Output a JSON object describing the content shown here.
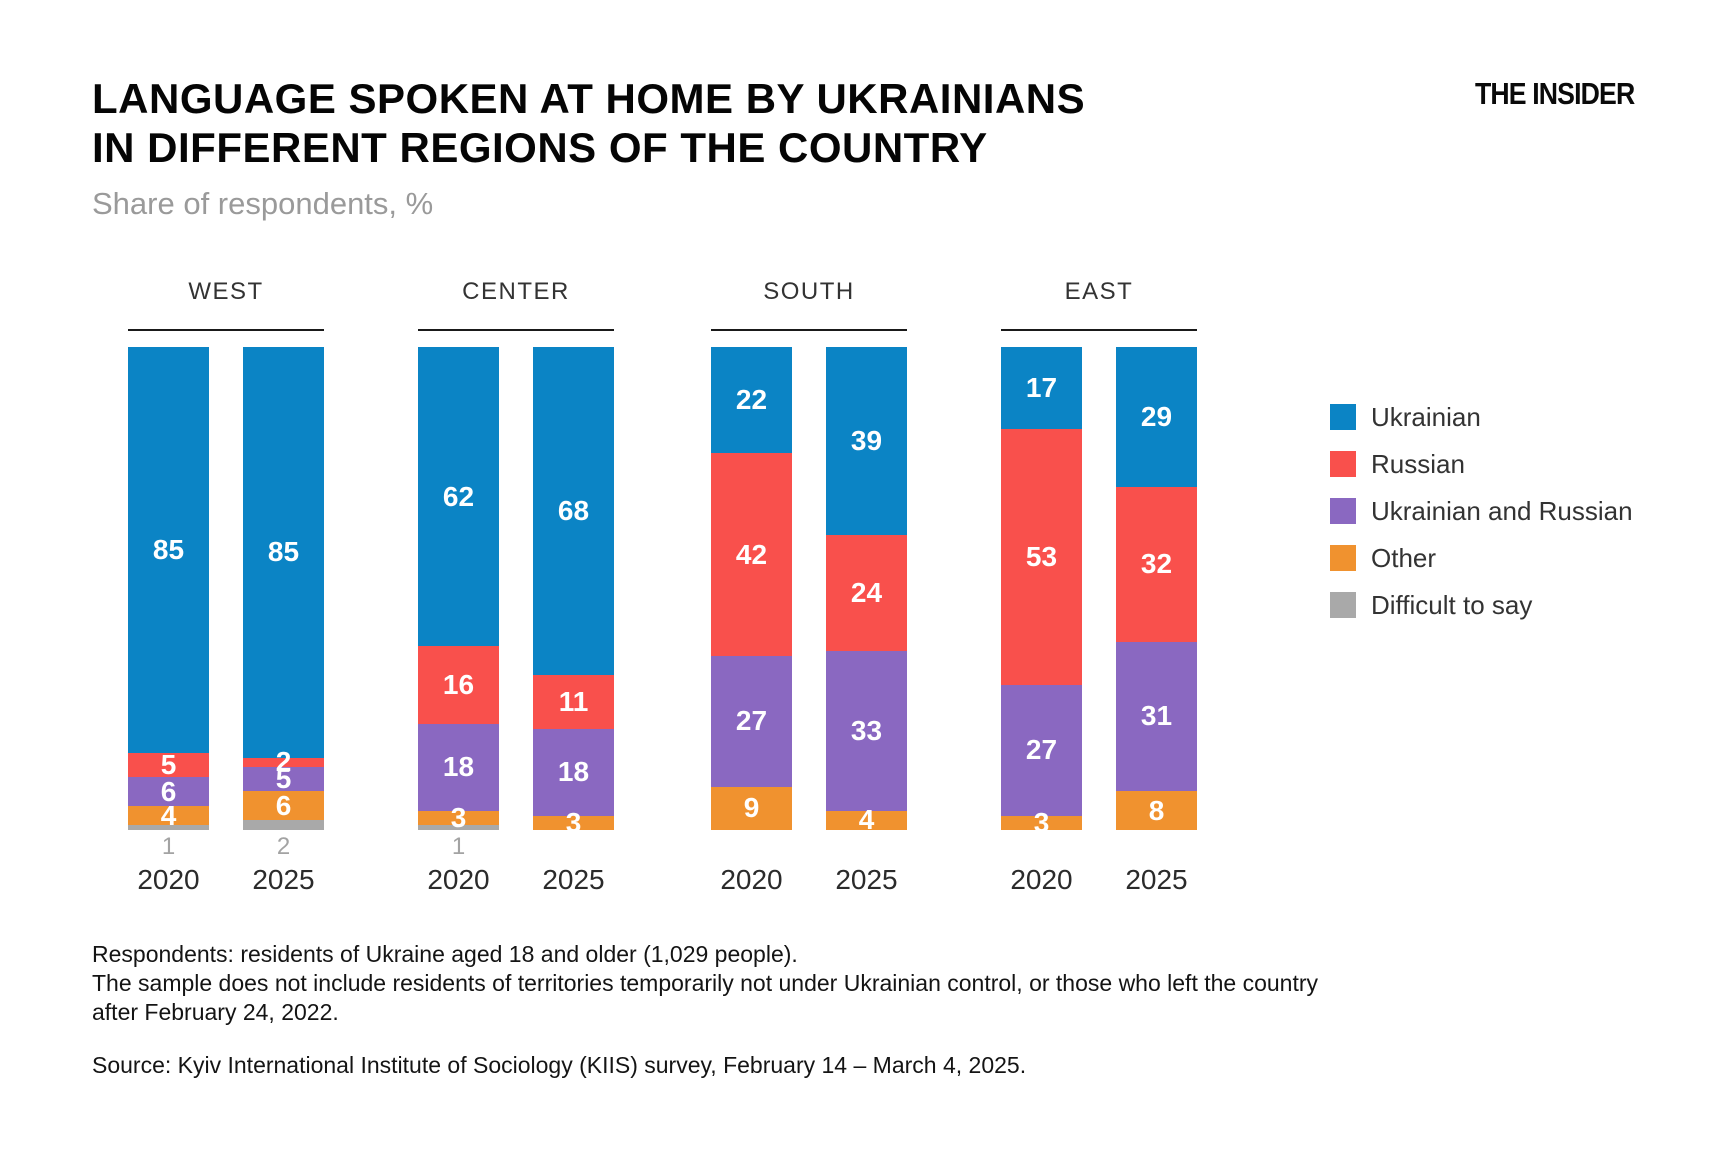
{
  "header": {
    "title_line1": "LANGUAGE SPOKEN AT HOME BY UKRAINIANS",
    "title_line2": "IN DIFFERENT REGIONS OF THE COUNTRY",
    "subtitle": "Share of respondents, %",
    "logo": "THE INSIDER"
  },
  "chart_data": {
    "type": "bar",
    "stacked": true,
    "unit": "%",
    "title": "Language spoken at home by Ukrainians in different regions of the country",
    "subtitle": "Share of respondents, %",
    "legend_position": "right",
    "series": [
      "Ukrainian",
      "Russian",
      "Ukrainian and Russian",
      "Other",
      "Difficult to say"
    ],
    "series_colors": [
      "#0b84c5",
      "#f9504c",
      "#8a68c1",
      "#f0922f",
      "#a9a9a9"
    ],
    "categories": [
      "2020",
      "2025"
    ],
    "groups": [
      {
        "region": "WEST",
        "bars": [
          {
            "year": "2020",
            "values": [
              85,
              5,
              6,
              4,
              1
            ]
          },
          {
            "year": "2025",
            "values": [
              85,
              2,
              5,
              6,
              2
            ]
          }
        ]
      },
      {
        "region": "CENTER",
        "bars": [
          {
            "year": "2020",
            "values": [
              62,
              16,
              18,
              3,
              1
            ]
          },
          {
            "year": "2025",
            "values": [
              68,
              11,
              18,
              3,
              0
            ]
          }
        ]
      },
      {
        "region": "SOUTH",
        "bars": [
          {
            "year": "2020",
            "values": [
              22,
              42,
              27,
              9,
              0
            ]
          },
          {
            "year": "2025",
            "values": [
              39,
              24,
              33,
              4,
              0
            ]
          }
        ]
      },
      {
        "region": "EAST",
        "bars": [
          {
            "year": "2020",
            "values": [
              17,
              53,
              27,
              3,
              0
            ]
          },
          {
            "year": "2025",
            "values": [
              29,
              32,
              31,
              8,
              0
            ]
          }
        ]
      }
    ]
  },
  "legend": {
    "items": [
      {
        "label": "Ukrainian",
        "color": "#0b84c5"
      },
      {
        "label": "Russian",
        "color": "#f9504c"
      },
      {
        "label": "Ukrainian and Russian",
        "color": "#8a68c1"
      },
      {
        "label": "Other",
        "color": "#f0922f"
      },
      {
        "label": "Difficult to say",
        "color": "#a9a9a9"
      }
    ]
  },
  "footnotes": {
    "line1": "Respondents: residents of Ukraine aged 18 and older (1,029 people).",
    "line2": "The sample does not include residents of territories temporarily not under Ukrainian control, or those who left the country",
    "line3": "after February 24, 2022.",
    "source": "Source: Kyiv International Institute of Sociology (KIIS) survey, February 14 – March 4, 2025."
  }
}
